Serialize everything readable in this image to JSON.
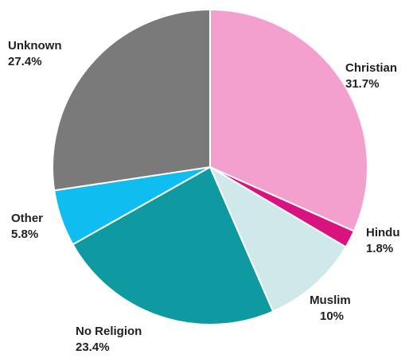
{
  "chart_data": {
    "type": "pie",
    "slices": [
      {
        "label": "Christian",
        "value": 31.7,
        "value_label": "31.7%",
        "color": "#f4a0cf"
      },
      {
        "label": "Hindu",
        "value": 1.8,
        "value_label": "1.8%",
        "color": "#d8127f"
      },
      {
        "label": "Muslim",
        "value": 10,
        "value_label": "10%",
        "color": "#cfe8ea"
      },
      {
        "label": "No Religion",
        "value": 23.4,
        "value_label": "23.4%",
        "color": "#0e9aa0"
      },
      {
        "label": "Other",
        "value": 5.8,
        "value_label": "5.8%",
        "color": "#10bdf0"
      },
      {
        "label": "Unknown",
        "value": 27.4,
        "value_label": "27.4%",
        "color": "#7a7a7a"
      }
    ],
    "start": "12 o'clock",
    "direction": "clockwise"
  }
}
